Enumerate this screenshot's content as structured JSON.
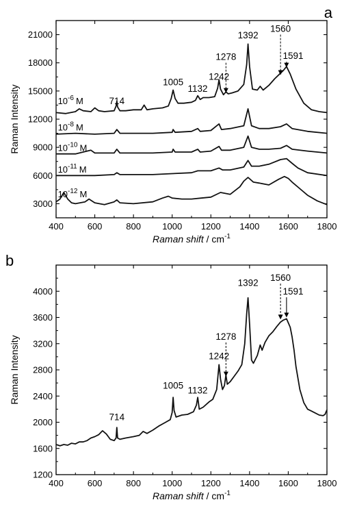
{
  "chart_data": [
    {
      "panel": "a",
      "type": "line",
      "xlabel": "Raman shift / cm-1",
      "xlabel_parts": [
        "Raman shift",
        " / cm",
        "-1"
      ],
      "ylabel": "Raman Intensity",
      "xlim": [
        400,
        1800
      ],
      "ylim": [
        1500,
        22500
      ],
      "xticks": [
        400,
        600,
        800,
        1000,
        1200,
        1400,
        1600,
        1800
      ],
      "xtick_labels": [
        "400",
        "600",
        "800",
        "1000",
        "1200",
        "1400",
        "1600",
        "1800"
      ],
      "yticks": [
        3000,
        6000,
        9000,
        12000,
        15000,
        18000,
        21000
      ],
      "ytick_labels": [
        "3000",
        "6000",
        "9000",
        "12000",
        "15000",
        "18000",
        "21000"
      ],
      "grid": false,
      "peak_labels": [
        {
          "text": "714",
          "x": 714,
          "y": 13600
        },
        {
          "text": "1005",
          "x": 1005,
          "y": 15600
        },
        {
          "text": "1132",
          "x": 1132,
          "y": 14900
        },
        {
          "text": "1242",
          "x": 1242,
          "y": 16200
        },
        {
          "text": "1278",
          "x": 1278,
          "y": 18300,
          "arrow": true,
          "arrow_to": 14800
        },
        {
          "text": "1392",
          "x": 1392,
          "y": 20600
        },
        {
          "text": "1560",
          "x": 1560,
          "y": 21300,
          "arrow": true,
          "arrow_to": 16700
        },
        {
          "text": "1591",
          "x": 1625,
          "y": 18400,
          "arrow_solid": true,
          "arrow_x": 1591,
          "arrow_to": 17500
        }
      ],
      "series": [
        {
          "label_base": "10",
          "label_exp": "-6",
          "label_unit": "M",
          "label_x": 402,
          "label_y": 13600,
          "x": [
            400,
            450,
            500,
            520,
            540,
            580,
            600,
            620,
            650,
            700,
            710,
            714,
            718,
            730,
            760,
            800,
            840,
            855,
            870,
            900,
            950,
            980,
            995,
            1005,
            1015,
            1030,
            1060,
            1100,
            1120,
            1132,
            1145,
            1160,
            1190,
            1220,
            1235,
            1242,
            1250,
            1265,
            1278,
            1290,
            1310,
            1340,
            1370,
            1385,
            1392,
            1400,
            1415,
            1440,
            1455,
            1470,
            1500,
            1530,
            1560,
            1575,
            1591,
            1610,
            1640,
            1680,
            1720,
            1760,
            1800
          ],
          "y": [
            12700,
            12600,
            12800,
            13100,
            12900,
            12800,
            13200,
            12900,
            12800,
            12900,
            13400,
            13900,
            13300,
            12900,
            12900,
            13000,
            13000,
            13500,
            13000,
            13100,
            13200,
            13400,
            14200,
            15100,
            14200,
            13700,
            13700,
            13800,
            14000,
            14500,
            14100,
            14300,
            14300,
            14400,
            15300,
            16200,
            15200,
            14600,
            14900,
            14700,
            14800,
            15000,
            15700,
            17800,
            20000,
            17600,
            15200,
            15100,
            15500,
            15100,
            15600,
            16300,
            16900,
            17200,
            17600,
            16800,
            15200,
            13700,
            13000,
            12800,
            12700
          ]
        },
        {
          "label_base": "10",
          "label_exp": "-8",
          "label_unit": "M",
          "label_x": 402,
          "label_y": 10800,
          "x": [
            400,
            500,
            600,
            700,
            714,
            730,
            800,
            900,
            1000,
            1005,
            1015,
            1100,
            1132,
            1145,
            1200,
            1242,
            1255,
            1300,
            1370,
            1392,
            1410,
            1450,
            1500,
            1560,
            1591,
            1620,
            1700,
            1800
          ],
          "y": [
            10400,
            10500,
            10400,
            10500,
            10900,
            10500,
            10500,
            10500,
            10600,
            10900,
            10600,
            10700,
            11000,
            10700,
            10800,
            11500,
            10900,
            11000,
            11300,
            13100,
            11300,
            11000,
            11000,
            11200,
            11500,
            11000,
            10700,
            10500
          ]
        },
        {
          "label_base": "10",
          "label_exp": "-10",
          "label_unit": "M",
          "label_x": 402,
          "label_y": 8600,
          "x": [
            400,
            500,
            580,
            600,
            700,
            714,
            730,
            800,
            900,
            1000,
            1005,
            1015,
            1100,
            1132,
            1145,
            1200,
            1242,
            1255,
            1300,
            1370,
            1392,
            1410,
            1450,
            1500,
            1560,
            1591,
            1620,
            1700,
            1800
          ],
          "y": [
            8300,
            8300,
            8700,
            8400,
            8400,
            8800,
            8400,
            8400,
            8400,
            8500,
            8800,
            8500,
            8500,
            8800,
            8500,
            8600,
            9100,
            8700,
            8700,
            9000,
            10200,
            9000,
            8800,
            8800,
            8900,
            9200,
            8800,
            8600,
            8400
          ]
        },
        {
          "label_base": "10",
          "label_exp": "-11",
          "label_unit": "M",
          "label_x": 402,
          "label_y": 6300,
          "x": [
            400,
            500,
            600,
            700,
            714,
            730,
            800,
            900,
            1000,
            1100,
            1132,
            1200,
            1242,
            1260,
            1300,
            1370,
            1392,
            1410,
            1450,
            1500,
            1560,
            1591,
            1620,
            1650,
            1700,
            1800
          ],
          "y": [
            6000,
            6000,
            6000,
            6100,
            6300,
            6100,
            6100,
            6100,
            6200,
            6300,
            6500,
            6500,
            6800,
            6600,
            6600,
            6900,
            7600,
            7000,
            7000,
            7200,
            7700,
            7800,
            7300,
            6800,
            6300,
            6000
          ]
        },
        {
          "label_base": "10",
          "label_exp": "-12",
          "label_unit": "M",
          "label_x": 402,
          "label_y": 3700,
          "x": [
            400,
            420,
            440,
            460,
            480,
            500,
            550,
            570,
            600,
            650,
            700,
            714,
            730,
            800,
            900,
            950,
            980,
            1000,
            1050,
            1100,
            1150,
            1200,
            1250,
            1300,
            1350,
            1370,
            1392,
            1420,
            1450,
            1500,
            1550,
            1580,
            1600,
            1620,
            1660,
            1700,
            1750,
            1800
          ],
          "y": [
            3200,
            3500,
            4200,
            3500,
            3100,
            3000,
            3200,
            3500,
            3100,
            2900,
            3200,
            3400,
            3100,
            3000,
            3200,
            3600,
            3800,
            3600,
            3500,
            3500,
            3600,
            3700,
            4200,
            4000,
            4800,
            5400,
            5800,
            5300,
            5200,
            5000,
            5600,
            5900,
            5700,
            5300,
            4600,
            3900,
            3300,
            2900
          ]
        }
      ]
    },
    {
      "panel": "b",
      "type": "line",
      "xlabel": "Raman shift / cm-1",
      "xlabel_parts": [
        "Raman shift",
        " / cm",
        "-1"
      ],
      "ylabel": "Raman Intensity",
      "xlim": [
        400,
        1800
      ],
      "ylim": [
        1200,
        4400
      ],
      "xticks": [
        400,
        600,
        800,
        1000,
        1200,
        1400,
        1600,
        1800
      ],
      "xtick_labels": [
        "400",
        "600",
        "800",
        "1000",
        "1200",
        "1400",
        "1600",
        "1800"
      ],
      "yticks": [
        1200,
        1600,
        2000,
        2400,
        2800,
        3200,
        3600,
        4000
      ],
      "ytick_labels": [
        "1200",
        "1600",
        "2000",
        "2400",
        "2800",
        "3200",
        "3600",
        "4000"
      ],
      "grid": false,
      "peak_labels": [
        {
          "text": "714",
          "x": 714,
          "y": 2030
        },
        {
          "text": "1005",
          "x": 1005,
          "y": 2510
        },
        {
          "text": "1132",
          "x": 1132,
          "y": 2440
        },
        {
          "text": "1242",
          "x": 1242,
          "y": 2960
        },
        {
          "text": "1278",
          "x": 1278,
          "y": 3260,
          "arrow": true,
          "arrow_to": 2700
        },
        {
          "text": "1392",
          "x": 1392,
          "y": 4080
        },
        {
          "text": "1560",
          "x": 1560,
          "y": 4160,
          "arrow": true,
          "arrow_to": 3570
        },
        {
          "text": "1591",
          "x": 1625,
          "y": 3950,
          "arrow_solid": true,
          "arrow_x": 1591,
          "arrow_to": 3600
        }
      ],
      "series": [
        {
          "x": [
            400,
            420,
            440,
            460,
            480,
            500,
            520,
            540,
            560,
            580,
            600,
            620,
            640,
            660,
            680,
            700,
            710,
            714,
            718,
            730,
            760,
            800,
            830,
            850,
            870,
            900,
            930,
            960,
            990,
            1000,
            1005,
            1010,
            1020,
            1050,
            1080,
            1110,
            1125,
            1132,
            1140,
            1160,
            1190,
            1210,
            1230,
            1242,
            1250,
            1260,
            1270,
            1278,
            1285,
            1300,
            1320,
            1340,
            1360,
            1375,
            1385,
            1392,
            1400,
            1410,
            1420,
            1440,
            1455,
            1465,
            1480,
            1500,
            1520,
            1540,
            1560,
            1575,
            1591,
            1600,
            1610,
            1620,
            1630,
            1640,
            1660,
            1680,
            1700,
            1720,
            1740,
            1760,
            1780,
            1790,
            1800
          ],
          "y": [
            1660,
            1640,
            1660,
            1650,
            1680,
            1670,
            1700,
            1700,
            1720,
            1760,
            1780,
            1810,
            1870,
            1820,
            1740,
            1720,
            1760,
            1920,
            1760,
            1740,
            1760,
            1780,
            1800,
            1860,
            1830,
            1880,
            1940,
            1990,
            2040,
            2150,
            2380,
            2180,
            2080,
            2110,
            2120,
            2160,
            2260,
            2380,
            2200,
            2230,
            2310,
            2350,
            2500,
            2880,
            2660,
            2500,
            2560,
            2720,
            2580,
            2620,
            2700,
            2780,
            2880,
            3200,
            3650,
            3900,
            3500,
            2950,
            2900,
            3020,
            3180,
            3100,
            3220,
            3320,
            3380,
            3460,
            3530,
            3560,
            3580,
            3520,
            3450,
            3300,
            3100,
            2850,
            2500,
            2300,
            2200,
            2170,
            2140,
            2110,
            2100,
            2120,
            2190
          ]
        }
      ]
    }
  ]
}
